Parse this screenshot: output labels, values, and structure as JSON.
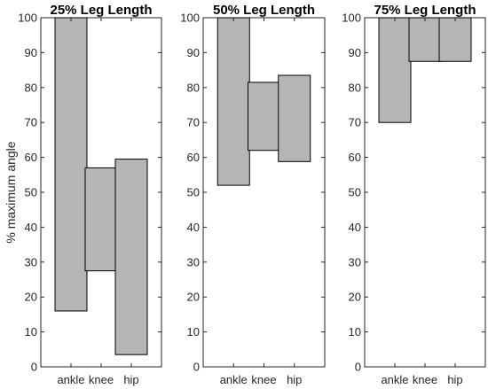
{
  "chart_data": [
    {
      "type": "bar",
      "title": "25% Leg Length",
      "ylabel": "% maximum angle",
      "xlabel": "",
      "categories": [
        "ankle",
        "knee",
        "hip"
      ],
      "ranges": [
        [
          16,
          100
        ],
        [
          27.5,
          57
        ],
        [
          3.5,
          59.5
        ]
      ],
      "ylim": [
        0,
        100
      ],
      "yticks": [
        0,
        10,
        20,
        30,
        40,
        50,
        60,
        70,
        80,
        90,
        100
      ]
    },
    {
      "type": "bar",
      "title": "50% Leg Length",
      "ylabel": "",
      "xlabel": "",
      "categories": [
        "ankle",
        "knee",
        "hip"
      ],
      "ranges": [
        [
          52,
          100
        ],
        [
          62,
          81.5
        ],
        [
          58.8,
          83.5
        ]
      ],
      "ylim": [
        0,
        100
      ],
      "yticks": [
        0,
        10,
        20,
        30,
        40,
        50,
        60,
        70,
        80,
        90,
        100
      ]
    },
    {
      "type": "bar",
      "title": "75% Leg Length",
      "ylabel": "",
      "xlabel": "",
      "categories": [
        "ankle",
        "knee",
        "hip"
      ],
      "ranges": [
        [
          70,
          100
        ],
        [
          87.5,
          100
        ],
        [
          87.5,
          100
        ]
      ],
      "ylim": [
        0,
        100
      ],
      "yticks": [
        0,
        10,
        20,
        30,
        40,
        50,
        60,
        70,
        80,
        90,
        100
      ]
    }
  ],
  "colors": {
    "bar_fill": "#b5b5b5",
    "bar_edge": "#000000",
    "axes": "#262626"
  },
  "grid": false
}
